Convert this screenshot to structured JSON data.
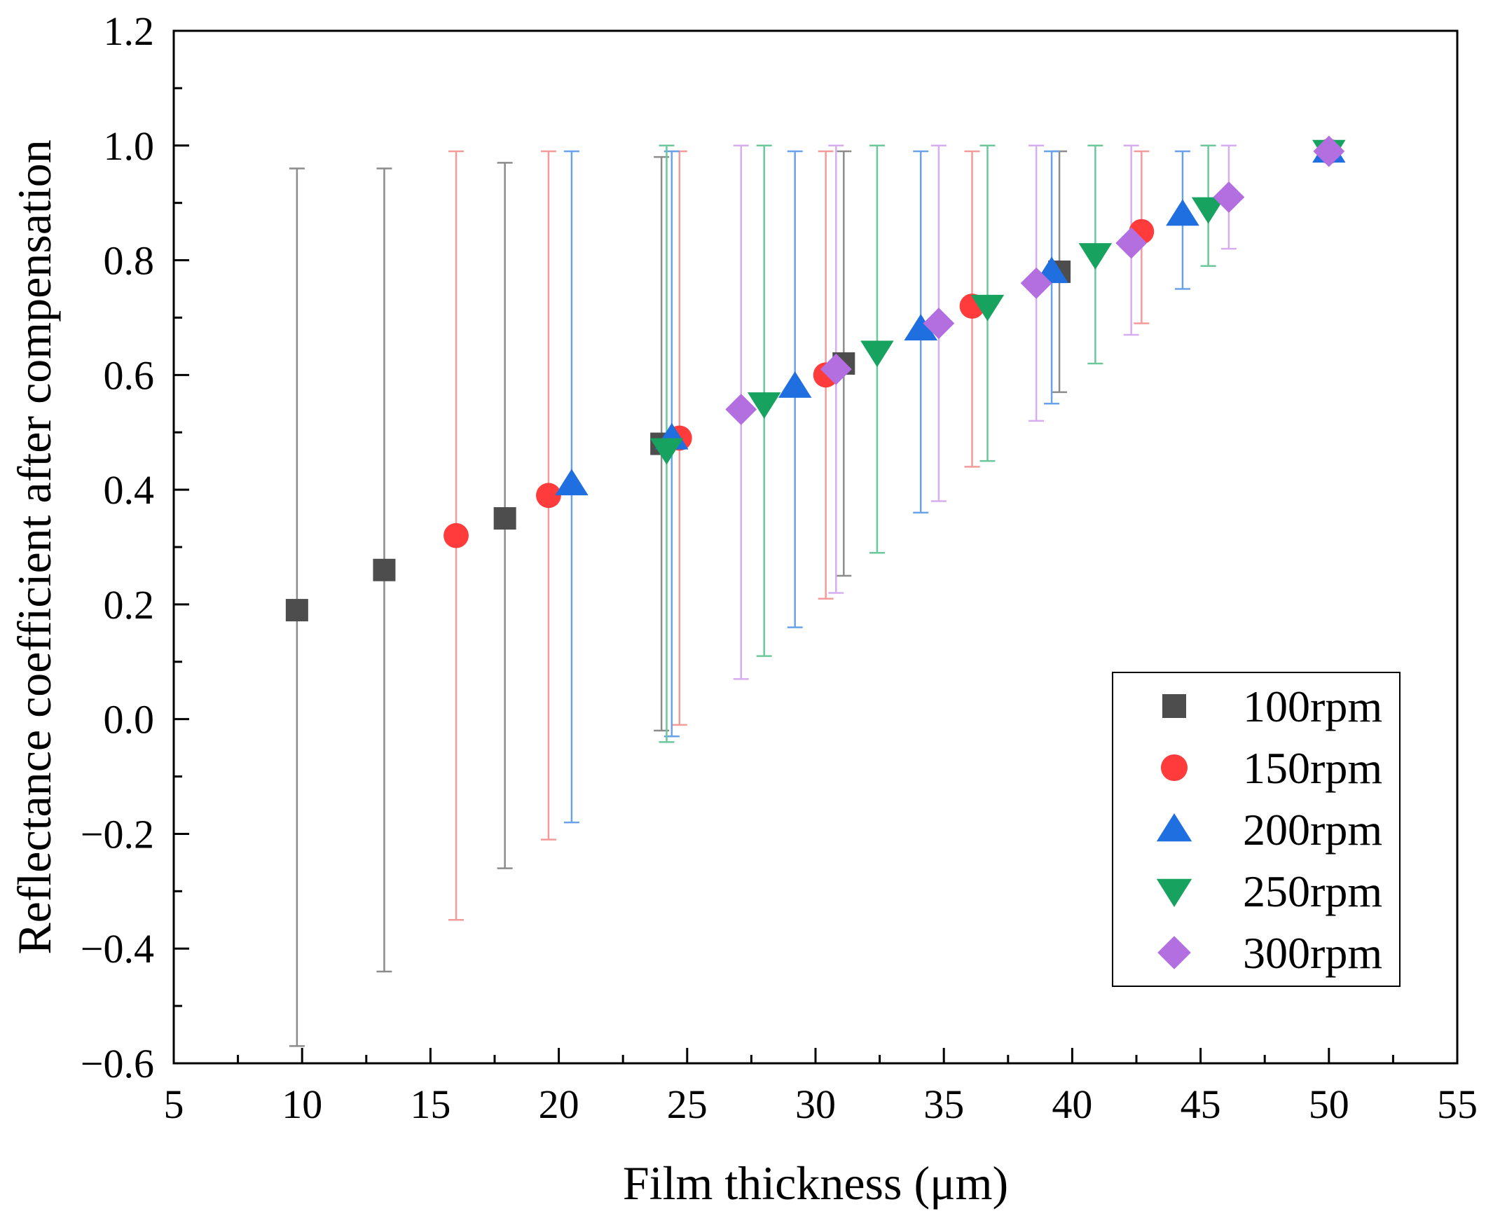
{
  "chart_data": {
    "type": "scatter",
    "title": "",
    "xlabel": "Film thickness (μm)",
    "ylabel": "Reflectance coefficient after compensation",
    "xlim": [
      5,
      55
    ],
    "ylim": [
      -0.6,
      1.2
    ],
    "x_ticks": [
      "5",
      "10",
      "15",
      "20",
      "25",
      "30",
      "35",
      "40",
      "45",
      "50",
      "55"
    ],
    "y_ticks": [
      "−0.6",
      "−0.4",
      "−0.2",
      "0.0",
      "0.2",
      "0.4",
      "0.6",
      "0.8",
      "1.0",
      "1.2"
    ],
    "legend_position": "bottom-right",
    "series": [
      {
        "name": "100rpm",
        "marker": "square",
        "color": "#4d4d4d",
        "bar_color": "#8c8c8c",
        "points": [
          {
            "x": 9.8,
            "y": 0.19,
            "lo": -0.57,
            "hi": 0.96
          },
          {
            "x": 13.2,
            "y": 0.26,
            "lo": -0.44,
            "hi": 0.96
          },
          {
            "x": 17.9,
            "y": 0.35,
            "lo": -0.26,
            "hi": 0.97
          },
          {
            "x": 24.0,
            "y": 0.48,
            "lo": -0.02,
            "hi": 0.98
          },
          {
            "x": 31.1,
            "y": 0.62,
            "lo": 0.25,
            "hi": 0.99
          },
          {
            "x": 39.5,
            "y": 0.78,
            "lo": 0.57,
            "hi": 0.99
          },
          {
            "x": 50.0,
            "y": 0.99,
            "lo": 0.98,
            "hi": 1.0
          }
        ]
      },
      {
        "name": "150rpm",
        "marker": "circle",
        "color": "#ff3b3b",
        "bar_color": "#f39a9a",
        "points": [
          {
            "x": 16.0,
            "y": 0.32,
            "lo": -0.35,
            "hi": 0.99
          },
          {
            "x": 19.6,
            "y": 0.39,
            "lo": -0.21,
            "hi": 0.99
          },
          {
            "x": 24.7,
            "y": 0.49,
            "lo": -0.01,
            "hi": 0.99
          },
          {
            "x": 30.4,
            "y": 0.6,
            "lo": 0.21,
            "hi": 0.99
          },
          {
            "x": 36.1,
            "y": 0.72,
            "lo": 0.44,
            "hi": 0.99
          },
          {
            "x": 42.7,
            "y": 0.85,
            "lo": 0.69,
            "hi": 0.99
          },
          {
            "x": 50.0,
            "y": 0.99,
            "lo": 0.98,
            "hi": 1.0
          }
        ]
      },
      {
        "name": "200rpm",
        "marker": "triangle-up",
        "color": "#1f6fe0",
        "bar_color": "#6aa2ea",
        "points": [
          {
            "x": 20.5,
            "y": 0.41,
            "lo": -0.18,
            "hi": 0.99
          },
          {
            "x": 24.4,
            "y": 0.49,
            "lo": -0.03,
            "hi": 0.99
          },
          {
            "x": 29.2,
            "y": 0.58,
            "lo": 0.16,
            "hi": 0.99
          },
          {
            "x": 34.1,
            "y": 0.68,
            "lo": 0.36,
            "hi": 0.99
          },
          {
            "x": 39.2,
            "y": 0.78,
            "lo": 0.55,
            "hi": 0.99
          },
          {
            "x": 44.3,
            "y": 0.88,
            "lo": 0.75,
            "hi": 0.99
          },
          {
            "x": 50.0,
            "y": 0.99,
            "lo": 0.98,
            "hi": 1.0
          }
        ]
      },
      {
        "name": "250rpm",
        "marker": "triangle-down",
        "color": "#17a35f",
        "bar_color": "#6cc79b",
        "points": [
          {
            "x": 24.2,
            "y": 0.47,
            "lo": -0.04,
            "hi": 1.0
          },
          {
            "x": 28.0,
            "y": 0.55,
            "lo": 0.11,
            "hi": 1.0
          },
          {
            "x": 32.4,
            "y": 0.64,
            "lo": 0.29,
            "hi": 1.0
          },
          {
            "x": 36.7,
            "y": 0.72,
            "lo": 0.45,
            "hi": 1.0
          },
          {
            "x": 40.9,
            "y": 0.81,
            "lo": 0.62,
            "hi": 1.0
          },
          {
            "x": 45.3,
            "y": 0.89,
            "lo": 0.79,
            "hi": 1.0
          },
          {
            "x": 50.0,
            "y": 0.99,
            "lo": 0.98,
            "hi": 1.0
          }
        ]
      },
      {
        "name": "300rpm",
        "marker": "diamond",
        "color": "#b36ee0",
        "bar_color": "#d6aeef",
        "points": [
          {
            "x": 27.1,
            "y": 0.54,
            "lo": 0.07,
            "hi": 1.0
          },
          {
            "x": 30.8,
            "y": 0.61,
            "lo": 0.22,
            "hi": 1.0
          },
          {
            "x": 34.8,
            "y": 0.69,
            "lo": 0.38,
            "hi": 1.0
          },
          {
            "x": 38.6,
            "y": 0.76,
            "lo": 0.52,
            "hi": 1.0
          },
          {
            "x": 42.3,
            "y": 0.83,
            "lo": 0.67,
            "hi": 1.0
          },
          {
            "x": 46.1,
            "y": 0.91,
            "lo": 0.82,
            "hi": 1.0
          },
          {
            "x": 50.0,
            "y": 0.99,
            "lo": 0.98,
            "hi": 1.0
          }
        ]
      }
    ]
  }
}
